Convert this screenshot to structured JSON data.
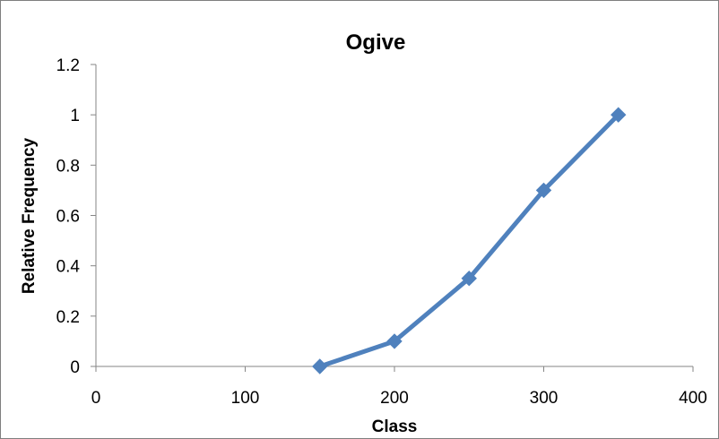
{
  "chart_data": {
    "type": "line",
    "title": "Ogive",
    "xlabel": "Class",
    "ylabel": "Relative Frequency",
    "xlim": [
      0,
      400
    ],
    "ylim": [
      0,
      1.2
    ],
    "x_ticks": [
      "0",
      "100",
      "200",
      "300",
      "400"
    ],
    "y_ticks": [
      "0",
      "0.2",
      "0.4",
      "0.6",
      "0.8",
      "1",
      "1.2"
    ],
    "grid": false,
    "legend": "none",
    "series": [
      {
        "x": [
          150,
          200,
          250,
          300,
          350
        ],
        "y": [
          0,
          0.1,
          0.35,
          0.7,
          1
        ],
        "color": "#4F81BD",
        "marker": "diamond"
      }
    ]
  }
}
